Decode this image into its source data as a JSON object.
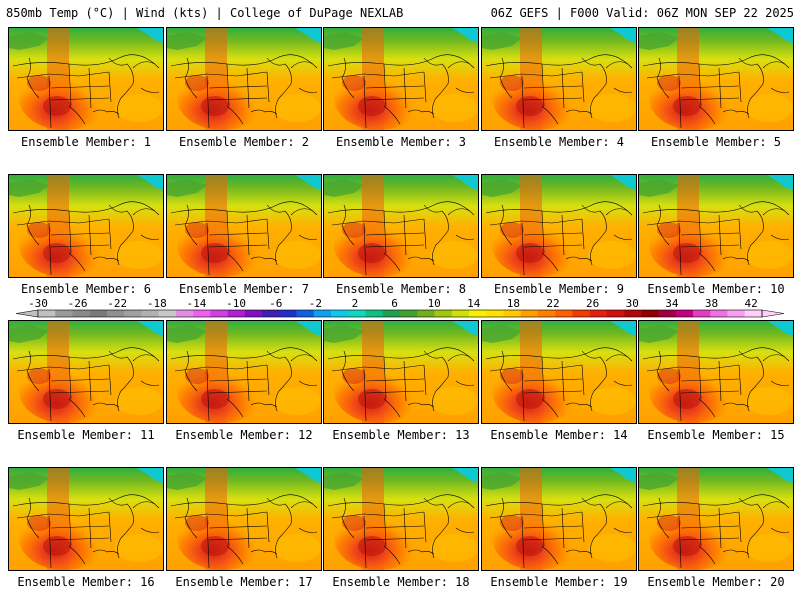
{
  "header": {
    "left_title": "850mb Temp (°C) | Wind (kts) | College of DuPage NEXLAB",
    "right_title": "06Z GEFS | F000 Valid: 06Z MON SEP 22 2025"
  },
  "panels": [
    {
      "label": "Ensemble Member: 1"
    },
    {
      "label": "Ensemble Member: 2"
    },
    {
      "label": "Ensemble Member: 3"
    },
    {
      "label": "Ensemble Member: 4"
    },
    {
      "label": "Ensemble Member: 5"
    },
    {
      "label": "Ensemble Member: 6"
    },
    {
      "label": "Ensemble Member: 7"
    },
    {
      "label": "Ensemble Member: 8"
    },
    {
      "label": "Ensemble Member: 9"
    },
    {
      "label": "Ensemble Member: 10"
    },
    {
      "label": "Ensemble Member: 11"
    },
    {
      "label": "Ensemble Member: 12"
    },
    {
      "label": "Ensemble Member: 13"
    },
    {
      "label": "Ensemble Member: 14"
    },
    {
      "label": "Ensemble Member: 15"
    },
    {
      "label": "Ensemble Member: 16"
    },
    {
      "label": "Ensemble Member: 17"
    },
    {
      "label": "Ensemble Member: 18"
    },
    {
      "label": "Ensemble Member: 19"
    },
    {
      "label": "Ensemble Member: 20"
    }
  ],
  "colorbar": {
    "ticks": [
      "-30",
      "-26",
      "-22",
      "-18",
      "-14",
      "-10",
      "-6",
      "-2",
      "2",
      "6",
      "10",
      "14",
      "18",
      "22",
      "26",
      "30",
      "34",
      "38",
      "42"
    ],
    "colors": [
      "#c0c0c0",
      "#9a9a9a",
      "#8a8a8a",
      "#7a7a7a",
      "#909090",
      "#a0a0a0",
      "#b0b0b0",
      "#c8c8c8",
      "#e090e0",
      "#f060f0",
      "#d040e0",
      "#b020d0",
      "#8010c0",
      "#4020b0",
      "#2030c8",
      "#1060e0",
      "#10a0f0",
      "#10c8e8",
      "#10d8c0",
      "#10c080",
      "#20a050",
      "#40a030",
      "#70b020",
      "#a0c810",
      "#d0e000",
      "#f8f000",
      "#ffe000",
      "#ffc800",
      "#ffa000",
      "#ff8000",
      "#ff6000",
      "#f03c00",
      "#e02010",
      "#d01010",
      "#b00808",
      "#900000",
      "#a00040",
      "#c00080",
      "#e040c0",
      "#f070e0",
      "#f8a0f0",
      "#ffd0f8"
    ]
  }
}
